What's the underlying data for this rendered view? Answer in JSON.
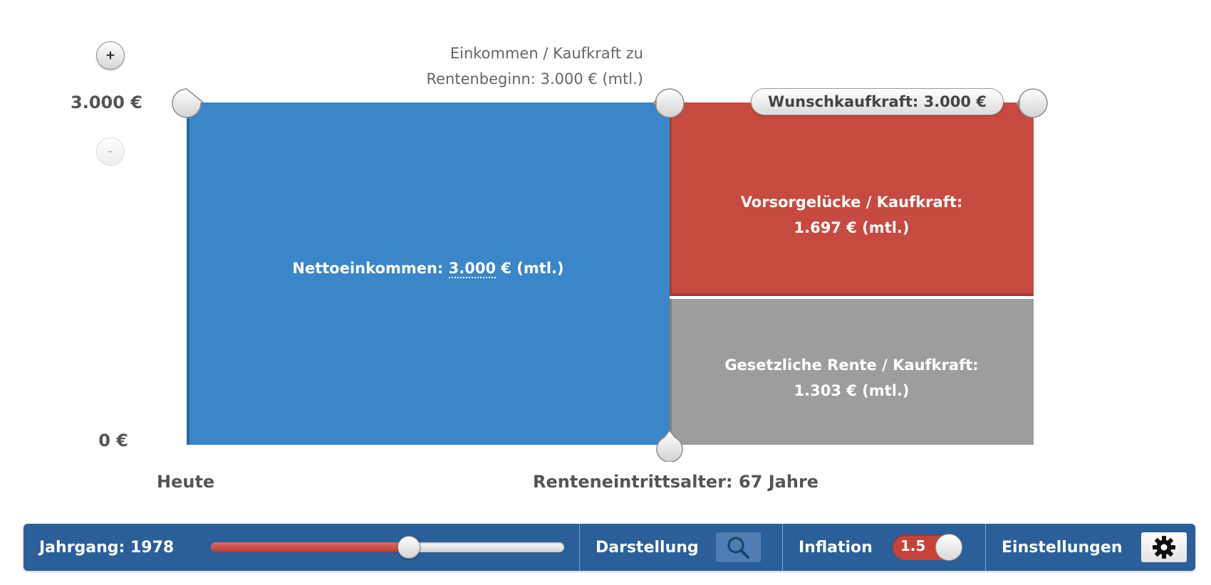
{
  "chart": {
    "y_axis": {
      "top_label": "3.000 €",
      "bottom_label": "0 €",
      "zoom_in": "+",
      "zoom_out": "–"
    },
    "top_note": {
      "line1": "Einkommen / Kaufkraft zu",
      "line2": "Rentenbeginn: 3.000 € (mtl.)"
    },
    "wish_pill": "Wunschkaufkraft: 3.000 €",
    "blocks": {
      "net_income": {
        "prefix": "Nettoeinkommen: ",
        "amount": "3.000",
        "suffix": " € (mtl.)",
        "color": "#3a86c8"
      },
      "gap": {
        "line1": "Vorsorgelücke / Kaufkraft:",
        "line2": "1.697 € (mtl.)",
        "color": "#c64a40"
      },
      "state_pension": {
        "line1": "Gesetzliche Rente / Kaufkraft:",
        "line2": "1.303 € (mtl.)",
        "color": "#9c9d9f"
      }
    },
    "x_axis": {
      "start_label": "Heute",
      "retirement_label": "Renteneintrittsalter: 67 Jahre"
    }
  },
  "chart_data": {
    "type": "bar",
    "categories": [
      "Heute",
      "Rentenbeginn"
    ],
    "series": [
      {
        "name": "Nettoeinkommen",
        "values": [
          3000,
          null
        ]
      },
      {
        "name": "Gesetzliche Rente / Kaufkraft",
        "values": [
          null,
          1303
        ]
      },
      {
        "name": "Vorsorgelücke / Kaufkraft",
        "values": [
          null,
          1697
        ]
      }
    ],
    "ylim": [
      0,
      3000
    ]
  },
  "toolbar": {
    "jahrgang_label": "Jahrgang: 1978",
    "jahrgang_slider_fraction": 0.56,
    "darstellung_label": "Darstellung",
    "darstellung_icon": "magnifier-icon",
    "inflation_label": "Inflation",
    "inflation_value": "1.5",
    "einstellungen_label": "Einstellungen",
    "einstellungen_icon": "gear-icon",
    "bar_color": "#2b5f9a"
  }
}
